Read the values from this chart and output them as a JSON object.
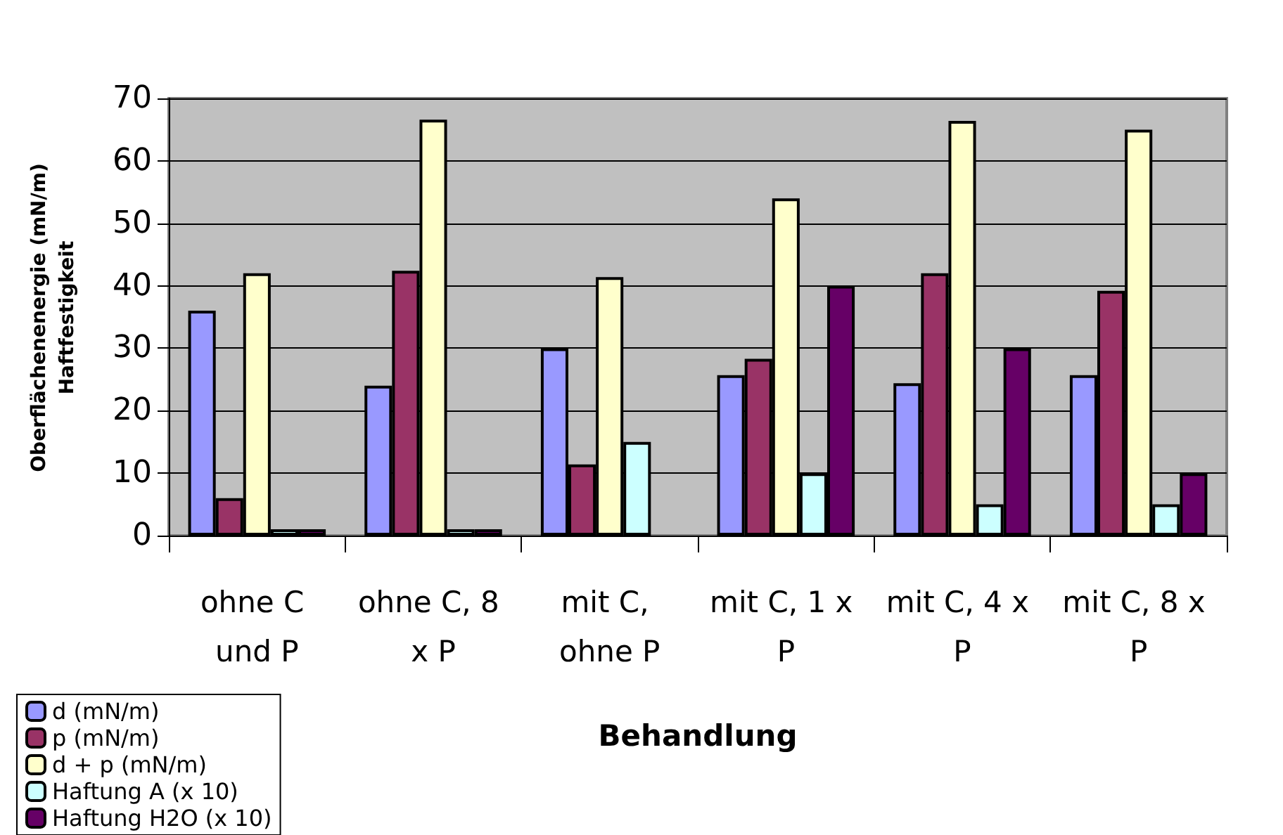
{
  "chart_data": {
    "type": "bar",
    "xlabel": "Behandlung",
    "ylabel": "Oberflächenenergie (mN/m)\nHaftfestigkeit",
    "categories": [
      "ohne C und P",
      "ohne C, 8 x P",
      "mit C, ohne P",
      "mit C, 1 x P",
      "mit C, 4 x P",
      "mit C, 8 x P"
    ],
    "series": [
      {
        "name": "d (mN/m)",
        "color": "#9999ff",
        "values": [
          36,
          24,
          30,
          25.7,
          24.4,
          25.7
        ]
      },
      {
        "name": "p (mN/m)",
        "color": "#993366",
        "values": [
          6,
          42.4,
          11.4,
          28.3,
          42,
          39.2
        ]
      },
      {
        "name": "d + p (mN/m)",
        "color": "#ffffcc",
        "values": [
          42,
          66.6,
          41.4,
          54,
          66.4,
          65
        ]
      },
      {
        "name": "Haftung A (x 10)",
        "color": "#ccffff",
        "values": [
          1,
          1,
          15,
          10,
          5,
          5
        ]
      },
      {
        "name": "Haftung H2O (x 10)",
        "color": "#660066",
        "values": [
          1,
          1,
          null,
          40,
          30,
          10
        ]
      }
    ],
    "ylim": [
      0,
      70
    ],
    "yticks": [
      0,
      10,
      20,
      30,
      40,
      50,
      60,
      70
    ],
    "grid": "y",
    "legend": "bottom left"
  }
}
